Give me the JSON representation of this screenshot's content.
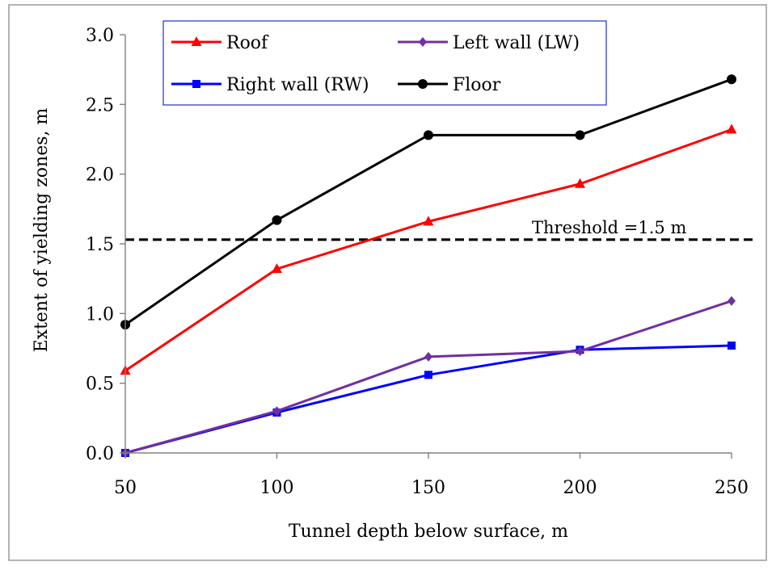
{
  "chart_data": {
    "type": "line",
    "title": "",
    "xlabel": "Tunnel depth below surface, m",
    "ylabel": "Extent of yielding zones, m",
    "x": [
      50,
      100,
      150,
      200,
      250
    ],
    "xlim": [
      50,
      250
    ],
    "ylim": [
      0.0,
      3.0
    ],
    "xticks": [
      "50",
      "100",
      "150",
      "200",
      "250"
    ],
    "yticks": [
      "0.0",
      "0.5",
      "1.0",
      "1.5",
      "2.0",
      "2.5",
      "3.0"
    ],
    "grid": false,
    "legend_position": "top",
    "series": [
      {
        "name": "Roof",
        "color": "#ff0000",
        "marker": "triangle",
        "values": [
          0.59,
          1.32,
          1.66,
          1.93,
          2.32
        ]
      },
      {
        "name": "Left wall (LW)",
        "color": "#7030a0",
        "marker": "diamond",
        "values": [
          0.0,
          0.3,
          0.69,
          0.73,
          1.09
        ]
      },
      {
        "name": "Right wall (RW)",
        "color": "#0000ff",
        "marker": "square",
        "values": [
          0.0,
          0.29,
          0.56,
          0.74,
          0.77
        ]
      },
      {
        "name": "Floor",
        "color": "#000000",
        "marker": "circle",
        "values": [
          0.92,
          1.67,
          2.28,
          2.28,
          2.68
        ]
      }
    ],
    "annotations": [
      {
        "text": "Threshold =1.5 m",
        "y": 1.53,
        "style": "dashed",
        "color": "#000000"
      }
    ]
  }
}
